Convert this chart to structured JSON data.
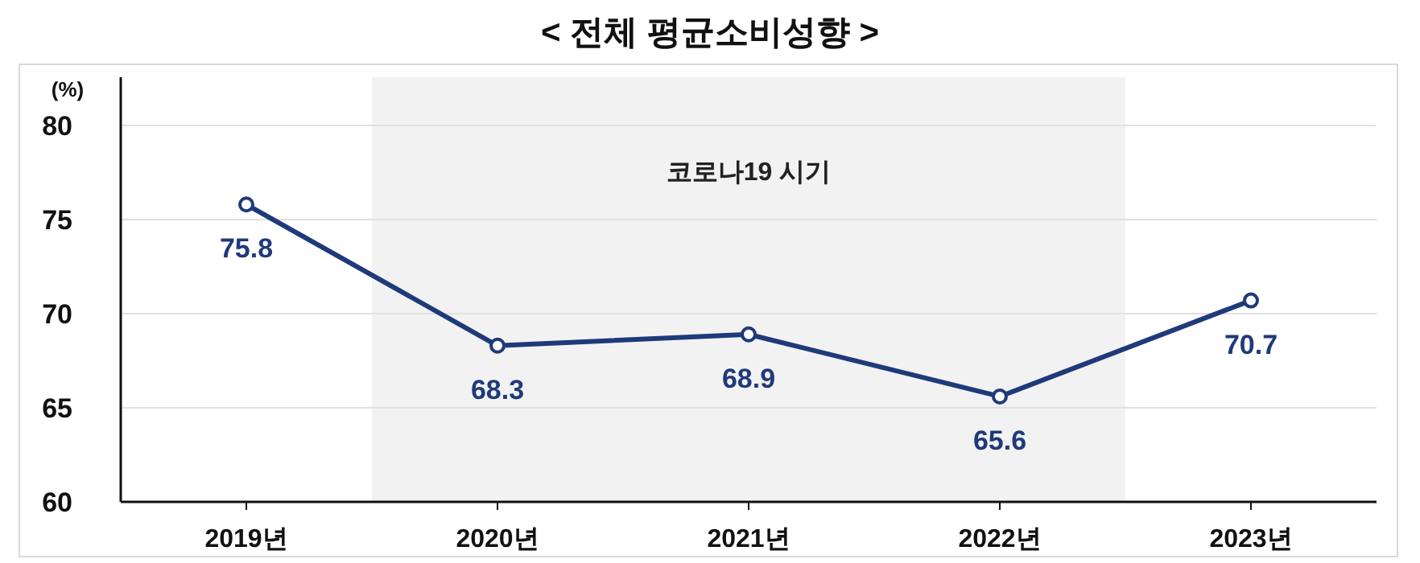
{
  "chart_data": {
    "type": "line",
    "title": "< 전체 평균소비성향 >",
    "ylabel": "(%)",
    "categories": [
      "2019년",
      "2020년",
      "2021년",
      "2022년",
      "2023년"
    ],
    "series": [
      {
        "color": "#1f3a7a",
        "values": [
          75.8,
          68.3,
          68.9,
          65.6,
          70.7
        ]
      }
    ],
    "ylim": [
      60,
      80
    ],
    "yticks": [
      60,
      65,
      70,
      75,
      80
    ],
    "grid": "y",
    "marker": "circle",
    "line_style": "solid",
    "data_labels": true,
    "bands": [
      {
        "axis": "x",
        "from": "2020년",
        "to": "2022년",
        "label": "코로나19 시기",
        "color": "#f2f2f2"
      }
    ]
  }
}
